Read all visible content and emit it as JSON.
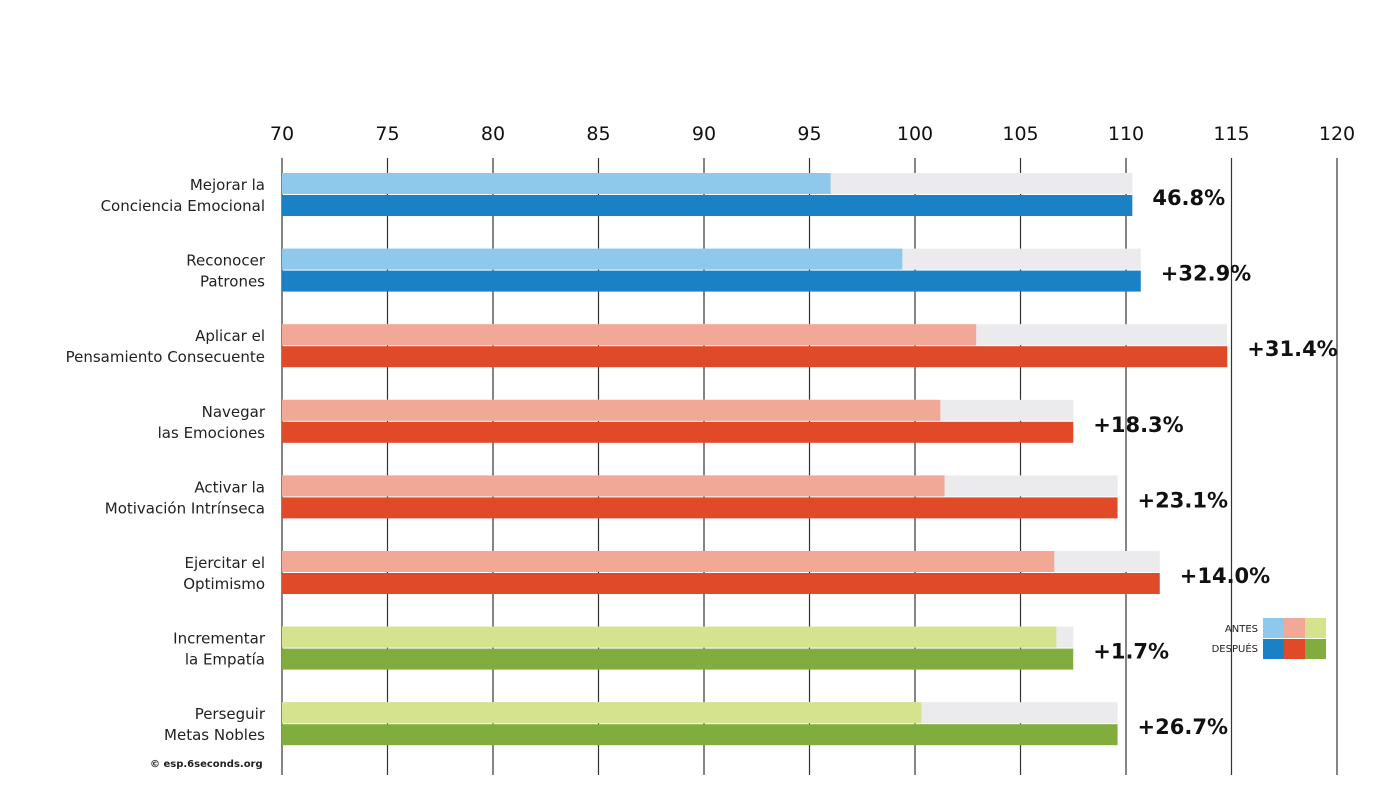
{
  "chart_data": {
    "type": "bar",
    "orientation": "horizontal",
    "xlim": [
      70,
      120
    ],
    "xticks": [
      "70",
      "75",
      "80",
      "85",
      "90",
      "95",
      "100",
      "105",
      "110",
      "115",
      "120"
    ],
    "categories": [
      [
        "Mejorar la",
        "Conciencia Emocional"
      ],
      [
        "Reconocer",
        "Patrones"
      ],
      [
        "Aplicar el",
        "Pensamiento Consecuente"
      ],
      [
        "Navegar",
        "las Emociones"
      ],
      [
        "Activar la",
        "Motivación Intrínseca"
      ],
      [
        "Ejercitar el",
        "Optimismo"
      ],
      [
        "Incrementar",
        "la Empatía"
      ],
      [
        "Perseguir",
        "Metas Nobles"
      ]
    ],
    "series": [
      {
        "name": "ANTES",
        "values": [
          96.0,
          99.4,
          102.9,
          101.2,
          101.4,
          106.6,
          106.7,
          100.3
        ]
      },
      {
        "name": "DESPUÉS",
        "values": [
          110.3,
          110.7,
          114.8,
          107.5,
          109.6,
          111.6,
          107.5,
          109.6
        ]
      }
    ],
    "changes": [
      "46.8%",
      "+32.9%",
      "+31.4%",
      "+18.3%",
      "+23.1%",
      "+14.0%",
      "+1.7%",
      "+26.7%"
    ],
    "color_groups": [
      0,
      0,
      1,
      1,
      1,
      1,
      2,
      2
    ],
    "colors": {
      "antes": [
        "#8ec8ea",
        "#f2a896",
        "#d5e28e"
      ],
      "despues": [
        "#1a82c4",
        "#e04a28",
        "#80ad3e"
      ],
      "track": "#ebebed",
      "grid": "#333333"
    },
    "legend": {
      "labels": [
        "ANTES",
        "DESPUÉS"
      ],
      "placement": "right"
    },
    "grid": true,
    "copyright": "© esp.6seconds.org"
  }
}
